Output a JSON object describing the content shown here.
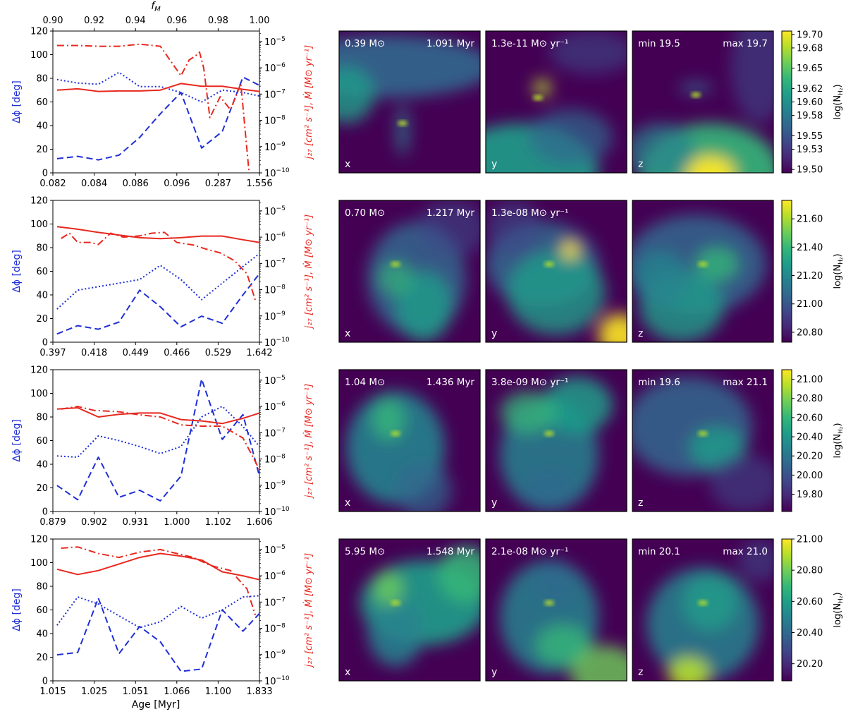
{
  "top_axis": {
    "label": "f",
    "label_sub": "M",
    "ticks": [
      "0.90",
      "0.92",
      "0.94",
      "0.96",
      "0.98",
      "1.00"
    ],
    "range": [
      0.9,
      1.0
    ]
  },
  "left_axis_label": "Δϕ [deg]",
  "right_axis_label": "j₂₇ [cm² s⁻¹], Ṁ [M⊙ yr⁻¹]",
  "x_axis_label": "Age [Myr]",
  "colorbar_label": "log(N",
  "colorbar_label_sub": "H₂",
  "colorbar_label_end": ")",
  "colormap": [
    "#440154",
    "#482878",
    "#3e4989",
    "#31688e",
    "#26828e",
    "#1f9e89",
    "#35b779",
    "#6ece58",
    "#b5de2b",
    "#fde725"
  ],
  "line_colors": {
    "angle": "#1f2fd6",
    "rate": "#e8281e"
  },
  "chart_data": [
    {
      "type": "line",
      "age_ticks": [
        "0.082",
        "0.084",
        "0.086",
        "0.096",
        "0.287",
        "1.556"
      ],
      "ylim": [
        0,
        120
      ],
      "yticks": [
        "0",
        "20",
        "40",
        "60",
        "80",
        "100",
        "120"
      ],
      "y2lim": [
        -10,
        -4.6
      ],
      "series": [
        {
          "axis": "left",
          "style": "dotted",
          "x": [
            0.902,
            0.912,
            0.922,
            0.932,
            0.942,
            0.952,
            0.962,
            0.972,
            0.982,
            0.992,
            1.0
          ],
          "values": [
            79,
            76,
            75,
            85,
            73,
            73,
            68,
            60,
            70,
            68,
            65
          ]
        },
        {
          "axis": "left",
          "style": "dashed",
          "x": [
            0.902,
            0.912,
            0.922,
            0.932,
            0.942,
            0.952,
            0.962,
            0.972,
            0.982,
            0.992,
            1.0
          ],
          "values": [
            12,
            14,
            11,
            15,
            30,
            50,
            68,
            21,
            35,
            81,
            74
          ]
        },
        {
          "axis": "right",
          "style": "solid",
          "x": [
            0.902,
            0.912,
            0.922,
            0.932,
            0.942,
            0.952,
            0.962,
            0.972,
            0.982,
            0.992,
            1.0
          ],
          "values": [
            -6.85,
            -6.8,
            -6.9,
            -6.88,
            -6.88,
            -6.85,
            -6.6,
            -6.7,
            -6.7,
            -6.82,
            -6.9
          ]
        },
        {
          "axis": "right",
          "style": "dashdot",
          "x": [
            0.902,
            0.912,
            0.922,
            0.932,
            0.942,
            0.952,
            0.962,
            0.966,
            0.969,
            0.971,
            0.973,
            0.976,
            0.981,
            0.986,
            0.991,
            0.995
          ],
          "values": [
            -5.15,
            -5.15,
            -5.18,
            -5.18,
            -5.1,
            -5.18,
            -6.3,
            -5.7,
            -5.55,
            -5.4,
            -6.0,
            -7.9,
            -7.1,
            -7.6,
            -6.6,
            -10
          ]
        }
      ],
      "panels": [
        {
          "axis": "x",
          "left_label": "0.39 M⊙",
          "right_label": "1.091 Myr"
        },
        {
          "axis": "y",
          "left_label": "1.3e-11 M⊙ yr⁻¹",
          "right_label": ""
        },
        {
          "axis": "z",
          "left_label": "min 19.5",
          "right_label": "max 19.7"
        }
      ],
      "colorbar_ticks": [
        "19.70",
        "19.68",
        "19.65",
        "19.62",
        "19.60",
        "19.58",
        "19.55",
        "19.53",
        "19.50"
      ],
      "colorbar_range": [
        19.495,
        19.705
      ]
    },
    {
      "type": "line",
      "age_ticks": [
        "0.397",
        "0.418",
        "0.449",
        "0.466",
        "0.529",
        "1.642"
      ],
      "ylim": [
        0,
        120
      ],
      "yticks": [
        "0",
        "20",
        "40",
        "60",
        "80",
        "100",
        "120"
      ],
      "y2lim": [
        -10,
        -4.6
      ],
      "series": [
        {
          "axis": "left",
          "style": "dotted",
          "x": [
            0.902,
            0.912,
            0.922,
            0.932,
            0.942,
            0.952,
            0.962,
            0.972,
            0.982,
            0.992,
            1.0
          ],
          "values": [
            28,
            44,
            47,
            50,
            53,
            65,
            53,
            36,
            50,
            64,
            75
          ]
        },
        {
          "axis": "left",
          "style": "dashed",
          "x": [
            0.902,
            0.912,
            0.922,
            0.932,
            0.942,
            0.952,
            0.962,
            0.972,
            0.982,
            0.992,
            1.0
          ],
          "values": [
            7,
            14,
            11,
            17,
            44,
            30,
            13,
            22,
            16,
            40,
            58
          ]
        },
        {
          "axis": "right",
          "style": "solid",
          "x": [
            0.902,
            0.912,
            0.922,
            0.932,
            0.942,
            0.952,
            0.962,
            0.972,
            0.982,
            0.992,
            1.0
          ],
          "values": [
            -5.6,
            -5.7,
            -5.82,
            -5.92,
            -6.02,
            -6.06,
            -6.02,
            -5.96,
            -5.96,
            -6.1,
            -6.2
          ]
        },
        {
          "axis": "right",
          "style": "dashdot",
          "x": [
            0.904,
            0.908,
            0.912,
            0.918,
            0.922,
            0.928,
            0.934,
            0.942,
            0.948,
            0.954,
            0.96,
            0.968,
            0.974,
            0.981,
            0.988,
            0.994,
            0.998
          ],
          "values": [
            -6.05,
            -5.85,
            -6.2,
            -6.2,
            -6.28,
            -5.85,
            -6.0,
            -5.95,
            -5.85,
            -5.82,
            -6.2,
            -6.3,
            -6.45,
            -6.6,
            -6.9,
            -7.4,
            -8.4
          ]
        }
      ],
      "panels": [
        {
          "axis": "x",
          "left_label": "0.70 M⊙",
          "right_label": "1.217 Myr"
        },
        {
          "axis": "y",
          "left_label": "1.3e-08 M⊙ yr⁻¹",
          "right_label": ""
        },
        {
          "axis": "z",
          "left_label": "",
          "right_label": ""
        }
      ],
      "colorbar_ticks": [
        "21.60",
        "21.40",
        "21.20",
        "21.00",
        "20.80"
      ],
      "colorbar_range": [
        20.73,
        21.73
      ]
    },
    {
      "type": "line",
      "age_ticks": [
        "0.879",
        "0.902",
        "0.931",
        "1.000",
        "1.102",
        "1.606"
      ],
      "ylim": [
        0,
        120
      ],
      "yticks": [
        "0",
        "20",
        "40",
        "60",
        "80",
        "100",
        "120"
      ],
      "y2lim": [
        -10,
        -4.6
      ],
      "series": [
        {
          "axis": "left",
          "style": "dotted",
          "x": [
            0.902,
            0.912,
            0.922,
            0.932,
            0.942,
            0.952,
            0.962,
            0.972,
            0.982,
            0.992,
            1.0
          ],
          "values": [
            47,
            46,
            64,
            60,
            55,
            49,
            55,
            80,
            89,
            72,
            55
          ]
        },
        {
          "axis": "left",
          "style": "dashed",
          "x": [
            0.902,
            0.912,
            0.922,
            0.932,
            0.942,
            0.952,
            0.962,
            0.972,
            0.982,
            0.992,
            1.0
          ],
          "values": [
            22,
            10,
            46,
            12,
            18,
            9,
            30,
            112,
            61,
            82,
            30
          ]
        },
        {
          "axis": "right",
          "style": "solid",
          "x": [
            0.902,
            0.912,
            0.922,
            0.932,
            0.942,
            0.952,
            0.962,
            0.972,
            0.982,
            0.992,
            1.0
          ],
          "values": [
            -6.1,
            -6.05,
            -6.4,
            -6.3,
            -6.25,
            -6.25,
            -6.5,
            -6.55,
            -6.65,
            -6.45,
            -6.25
          ]
        },
        {
          "axis": "right",
          "style": "dashdot",
          "x": [
            0.904,
            0.912,
            0.92,
            0.932,
            0.942,
            0.952,
            0.962,
            0.972,
            0.982,
            0.992,
            1.0
          ],
          "values": [
            -6.1,
            -6.0,
            -6.15,
            -6.2,
            -6.32,
            -6.4,
            -6.7,
            -6.75,
            -6.75,
            -7.2,
            -8.4
          ]
        }
      ],
      "panels": [
        {
          "axis": "x",
          "left_label": "1.04 M⊙",
          "right_label": "1.436 Myr"
        },
        {
          "axis": "y",
          "left_label": "3.8e-09 M⊙ yr⁻¹",
          "right_label": ""
        },
        {
          "axis": "z",
          "left_label": "min 19.6",
          "right_label": "max 21.1"
        }
      ],
      "colorbar_ticks": [
        "21.00",
        "20.80",
        "20.60",
        "20.40",
        "20.20",
        "20.00",
        "19.80"
      ],
      "colorbar_range": [
        19.62,
        21.1
      ]
    },
    {
      "type": "line",
      "age_ticks": [
        "1.015",
        "1.025",
        "1.051",
        "1.066",
        "1.100",
        "1.833"
      ],
      "ylim": [
        0,
        120
      ],
      "yticks": [
        "0",
        "20",
        "40",
        "60",
        "80",
        "100",
        "120"
      ],
      "y2lim": [
        -10,
        -4.6
      ],
      "series": [
        {
          "axis": "left",
          "style": "dotted",
          "x": [
            0.902,
            0.912,
            0.922,
            0.932,
            0.942,
            0.952,
            0.962,
            0.972,
            0.982,
            0.992,
            1.0
          ],
          "values": [
            47,
            71,
            65,
            55,
            45,
            50,
            63,
            53,
            60,
            71,
            72
          ]
        },
        {
          "axis": "left",
          "style": "dashed",
          "x": [
            0.902,
            0.912,
            0.922,
            0.932,
            0.942,
            0.952,
            0.962,
            0.972,
            0.982,
            0.992,
            1.0
          ],
          "values": [
            22,
            24,
            70,
            23,
            46,
            33,
            8,
            10,
            60,
            42,
            57
          ]
        },
        {
          "axis": "right",
          "style": "solid",
          "x": [
            0.902,
            0.912,
            0.922,
            0.932,
            0.942,
            0.952,
            0.962,
            0.972,
            0.982,
            0.992,
            1.0
          ],
          "values": [
            -5.75,
            -5.95,
            -5.8,
            -5.55,
            -5.3,
            -5.15,
            -5.25,
            -5.4,
            -5.85,
            -6.0,
            -6.15
          ]
        },
        {
          "axis": "right",
          "style": "dashdot",
          "x": [
            0.904,
            0.912,
            0.922,
            0.932,
            0.942,
            0.952,
            0.96,
            0.968,
            0.976,
            0.986,
            0.994,
            0.998
          ],
          "values": [
            -4.95,
            -4.9,
            -5.15,
            -5.3,
            -5.1,
            -5.0,
            -5.15,
            -5.3,
            -5.6,
            -5.8,
            -6.5,
            -7.5
          ]
        }
      ],
      "panels": [
        {
          "axis": "x",
          "left_label": "5.95 M⊙",
          "right_label": "1.548 Myr"
        },
        {
          "axis": "y",
          "left_label": "2.1e-08 M⊙ yr⁻¹",
          "right_label": ""
        },
        {
          "axis": "z",
          "left_label": "min 20.1",
          "right_label": "max 21.0"
        }
      ],
      "colorbar_ticks": [
        "21.00",
        "20.80",
        "20.60",
        "20.40",
        "20.20"
      ],
      "colorbar_range": [
        20.09,
        21.0
      ]
    }
  ]
}
